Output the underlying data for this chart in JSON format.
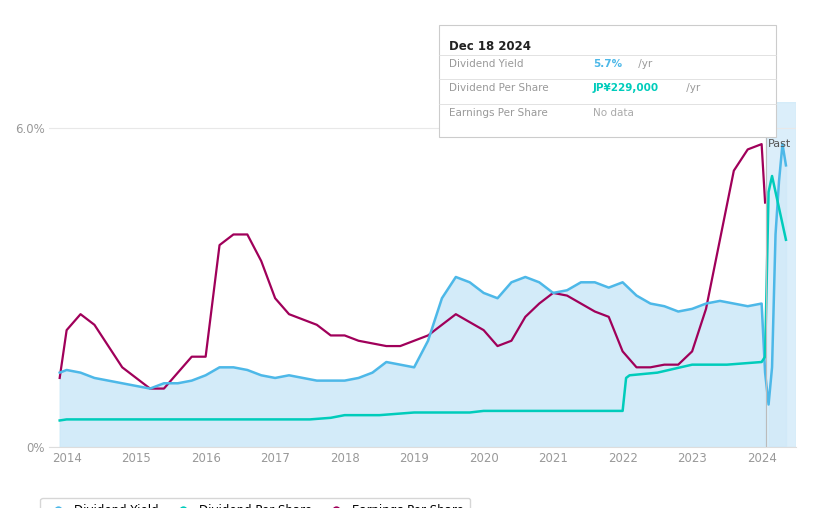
{
  "info_box": {
    "date": "Dec 18 2024",
    "dividend_yield_label": "Dividend Yield",
    "dividend_yield_value": "5.7%",
    "dividend_yield_suffix": " /yr",
    "dividend_per_share_label": "Dividend Per Share",
    "dividend_per_share_value": "JP¥229,000",
    "dividend_per_share_suffix": " /yr",
    "earnings_per_share_label": "Earnings Per Share",
    "earnings_per_share_value": "No data"
  },
  "past_label": "Past",
  "colors": {
    "dividend_yield_line": "#4db8e8",
    "dividend_yield_fill": "#cce8f8",
    "dividend_per_share_line": "#00ccbb",
    "earnings_per_share_line": "#a0005a",
    "past_region_fill": "#cce8f8",
    "info_box_border": "#cccccc",
    "info_box_bg": "#ffffff",
    "grid": "#e8e8e8",
    "axis_text": "#999999",
    "info_value_yield": "#4db8e8",
    "info_value_dps": "#00ccbb",
    "info_value_eps": "#aaaaaa",
    "legend_dot_yield": "#4db8e8",
    "legend_dot_dps": "#00ccbb",
    "legend_dot_eps": "#a0005a",
    "past_vline": "#bbbbbb"
  },
  "dividend_yield": {
    "x": [
      2013.9,
      2014.0,
      2014.2,
      2014.4,
      2014.6,
      2014.8,
      2015.0,
      2015.2,
      2015.4,
      2015.6,
      2015.8,
      2016.0,
      2016.2,
      2016.4,
      2016.6,
      2016.8,
      2017.0,
      2017.2,
      2017.4,
      2017.6,
      2017.8,
      2018.0,
      2018.2,
      2018.4,
      2018.6,
      2018.8,
      2019.0,
      2019.2,
      2019.4,
      2019.6,
      2019.8,
      2020.0,
      2020.2,
      2020.4,
      2020.6,
      2020.8,
      2021.0,
      2021.2,
      2021.4,
      2021.6,
      2021.8,
      2022.0,
      2022.2,
      2022.4,
      2022.6,
      2022.8,
      2023.0,
      2023.2,
      2023.4,
      2023.6,
      2023.8,
      2024.0,
      2024.05,
      2024.1,
      2024.15,
      2024.2,
      2024.25,
      2024.3,
      2024.35
    ],
    "y": [
      1.4,
      1.45,
      1.4,
      1.3,
      1.25,
      1.2,
      1.15,
      1.1,
      1.2,
      1.2,
      1.25,
      1.35,
      1.5,
      1.5,
      1.45,
      1.35,
      1.3,
      1.35,
      1.3,
      1.25,
      1.25,
      1.25,
      1.3,
      1.4,
      1.6,
      1.55,
      1.5,
      2.0,
      2.8,
      3.2,
      3.1,
      2.9,
      2.8,
      3.1,
      3.2,
      3.1,
      2.9,
      2.95,
      3.1,
      3.1,
      3.0,
      3.1,
      2.85,
      2.7,
      2.65,
      2.55,
      2.6,
      2.7,
      2.75,
      2.7,
      2.65,
      2.7,
      1.4,
      0.8,
      1.5,
      4.0,
      5.0,
      5.7,
      5.3
    ]
  },
  "dividend_per_share": {
    "x": [
      2013.9,
      2014.0,
      2014.5,
      2015.0,
      2015.5,
      2016.0,
      2016.5,
      2017.0,
      2017.5,
      2017.8,
      2018.0,
      2018.5,
      2019.0,
      2019.5,
      2019.8,
      2020.0,
      2020.5,
      2021.0,
      2021.5,
      2022.0,
      2022.05,
      2022.1,
      2022.5,
      2023.0,
      2023.5,
      2024.0,
      2024.05,
      2024.1,
      2024.15,
      2024.2,
      2024.25,
      2024.3,
      2024.35
    ],
    "y": [
      0.5,
      0.52,
      0.52,
      0.52,
      0.52,
      0.52,
      0.52,
      0.52,
      0.52,
      0.55,
      0.6,
      0.6,
      0.65,
      0.65,
      0.65,
      0.68,
      0.68,
      0.68,
      0.68,
      0.68,
      1.3,
      1.35,
      1.4,
      1.55,
      1.55,
      1.6,
      1.7,
      4.8,
      5.1,
      4.8,
      4.5,
      4.2,
      3.9
    ]
  },
  "earnings_per_share": {
    "x": [
      2013.9,
      2014.0,
      2014.2,
      2014.4,
      2014.6,
      2014.8,
      2015.0,
      2015.2,
      2015.4,
      2015.6,
      2015.8,
      2016.0,
      2016.2,
      2016.4,
      2016.6,
      2016.8,
      2017.0,
      2017.2,
      2017.4,
      2017.6,
      2017.8,
      2018.0,
      2018.2,
      2018.4,
      2018.6,
      2018.8,
      2019.0,
      2019.2,
      2019.4,
      2019.6,
      2019.8,
      2020.0,
      2020.2,
      2020.4,
      2020.6,
      2020.8,
      2021.0,
      2021.2,
      2021.4,
      2021.6,
      2021.8,
      2022.0,
      2022.2,
      2022.4,
      2022.6,
      2022.8,
      2023.0,
      2023.2,
      2023.4,
      2023.6,
      2023.8,
      2024.0,
      2024.05
    ],
    "y": [
      1.3,
      2.2,
      2.5,
      2.3,
      1.9,
      1.5,
      1.3,
      1.1,
      1.1,
      1.4,
      1.7,
      1.7,
      3.8,
      4.0,
      4.0,
      3.5,
      2.8,
      2.5,
      2.4,
      2.3,
      2.1,
      2.1,
      2.0,
      1.95,
      1.9,
      1.9,
      2.0,
      2.1,
      2.3,
      2.5,
      2.35,
      2.2,
      1.9,
      2.0,
      2.45,
      2.7,
      2.9,
      2.85,
      2.7,
      2.55,
      2.45,
      1.8,
      1.5,
      1.5,
      1.55,
      1.55,
      1.8,
      2.6,
      3.9,
      5.2,
      5.6,
      5.7,
      4.6
    ]
  },
  "past_x_start": 2024.07,
  "xlim": [
    2013.75,
    2024.5
  ],
  "ylim": [
    0.0,
    6.5
  ],
  "x_tick_years": [
    2014,
    2015,
    2016,
    2017,
    2018,
    2019,
    2020,
    2021,
    2022,
    2023,
    2024
  ],
  "ytick_positions": [
    0.0,
    6.0
  ],
  "ytick_labels": [
    "0%",
    "6.0%"
  ]
}
